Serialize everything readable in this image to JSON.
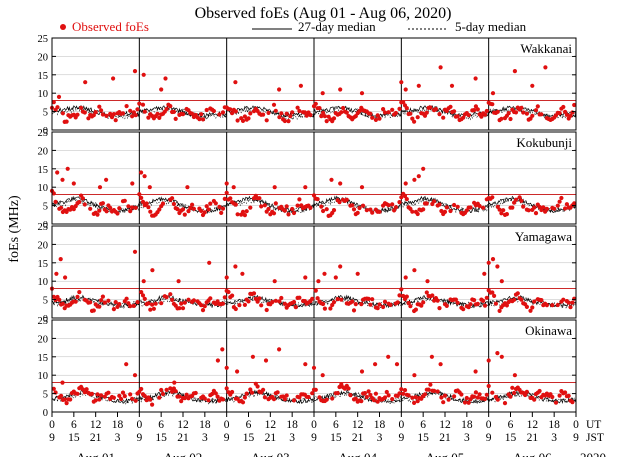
{
  "chart_data": {
    "type": "scatter",
    "title": "Observed foEs (Aug 01 - Aug 06, 2020)",
    "ylabel": "foEs (MHz)",
    "ylim": [
      0,
      25
    ],
    "yticks": [
      0,
      5,
      10,
      15,
      20,
      25
    ],
    "legend": {
      "observed": "Observed foEs",
      "median27": "27-day median",
      "median5": "5-day median"
    },
    "colors": {
      "observed": "#e01010",
      "median27": "#000000",
      "median5": "#000000",
      "reference": "#cc2a2a",
      "grid": "#bbbbbb"
    },
    "reference_line_mhz": 8,
    "time": {
      "days": [
        "Aug 01",
        "Aug 02",
        "Aug 03",
        "Aug 04",
        "Aug 05",
        "Aug 06"
      ],
      "ut_ticks": [
        "0",
        "6",
        "12",
        "18",
        "0",
        "6",
        "12",
        "18",
        "0",
        "6",
        "12",
        "18",
        "0",
        "6",
        "12",
        "18",
        "0",
        "6",
        "12",
        "18",
        "0",
        "6",
        "12",
        "18",
        "0"
      ],
      "jst_ticks": [
        "9",
        "15",
        "21",
        "3",
        "9",
        "15",
        "21",
        "3",
        "9",
        "15",
        "21",
        "3",
        "9",
        "15",
        "21",
        "3",
        "9",
        "15",
        "21",
        "3",
        "9",
        "15",
        "21",
        "3",
        "9"
      ],
      "ut_label": "UT",
      "jst_label": "JST",
      "year": "2020"
    },
    "stations": [
      {
        "name": "Wakkanai",
        "median27_profile": [
          5,
          5.5,
          6,
          6,
          5,
          4,
          4,
          4.5,
          4
        ],
        "median5_profile": [
          5,
          5,
          5.5,
          5.5,
          5,
          4,
          3.5,
          4,
          4
        ],
        "observed_profile": [
          7,
          6,
          4.5,
          3.5,
          3,
          3.5,
          4,
          5,
          6,
          5.5,
          4,
          3.5,
          4.5,
          6,
          5,
          4,
          3.5,
          3.5,
          4,
          5,
          6,
          5,
          4,
          4.5
        ],
        "spikes": [
          [
            0.08,
            9
          ],
          [
            0.38,
            13
          ],
          [
            0.7,
            14
          ],
          [
            0.95,
            16
          ],
          [
            1.05,
            15
          ],
          [
            1.25,
            11
          ],
          [
            1.3,
            14
          ],
          [
            2.1,
            13
          ],
          [
            2.6,
            11
          ],
          [
            2.85,
            12
          ],
          [
            3.1,
            10
          ],
          [
            3.3,
            11
          ],
          [
            3.55,
            10
          ],
          [
            4.0,
            13
          ],
          [
            4.05,
            11
          ],
          [
            4.2,
            12
          ],
          [
            4.45,
            17
          ],
          [
            4.58,
            12
          ],
          [
            4.85,
            14
          ],
          [
            5.05,
            10
          ],
          [
            5.3,
            16
          ],
          [
            5.5,
            12
          ],
          [
            5.65,
            17
          ]
        ]
      },
      {
        "name": "Kokubunji",
        "median27_profile": [
          5.5,
          6,
          7,
          6.5,
          5,
          4,
          3.5,
          4,
          5
        ],
        "median5_profile": [
          5,
          5.5,
          6.5,
          6,
          5,
          4,
          3.5,
          4,
          4.5
        ],
        "observed_profile": [
          8,
          7,
          5,
          3.5,
          3,
          3.5,
          5,
          6,
          7,
          6,
          5,
          3.5,
          3,
          4,
          5,
          4.5,
          4,
          3.5,
          3.5,
          4.5,
          6,
          5,
          4,
          4
        ],
        "spikes": [
          [
            0.06,
            14
          ],
          [
            0.12,
            12
          ],
          [
            0.18,
            15
          ],
          [
            0.25,
            11
          ],
          [
            0.55,
            10
          ],
          [
            0.62,
            12
          ],
          [
            0.92,
            11
          ],
          [
            1.02,
            14
          ],
          [
            1.06,
            13
          ],
          [
            1.12,
            10
          ],
          [
            1.55,
            10
          ],
          [
            2.0,
            11
          ],
          [
            2.08,
            10
          ],
          [
            2.55,
            10
          ],
          [
            2.9,
            10
          ],
          [
            3.2,
            12
          ],
          [
            3.3,
            11
          ],
          [
            3.55,
            10
          ],
          [
            4.05,
            11
          ],
          [
            4.15,
            12
          ],
          [
            4.2,
            13
          ],
          [
            4.25,
            15
          ]
        ]
      },
      {
        "name": "Yamagawa",
        "median27_profile": [
          4,
          4.5,
          5.5,
          5.5,
          4.5,
          4,
          3.5,
          3.5,
          4
        ],
        "median5_profile": [
          4,
          4,
          5,
          5,
          4.5,
          4,
          3.5,
          3.5,
          4
        ],
        "observed_profile": [
          7,
          6,
          4,
          3,
          3,
          3.5,
          5,
          6,
          6,
          5,
          4,
          3,
          3,
          4,
          5,
          4.5,
          4,
          3.5,
          3,
          4,
          5,
          4.5,
          4,
          3.5
        ],
        "spikes": [
          [
            0.05,
            12
          ],
          [
            0.1,
            16
          ],
          [
            0.15,
            11
          ],
          [
            0.95,
            18
          ],
          [
            1.05,
            10
          ],
          [
            1.15,
            13
          ],
          [
            1.45,
            10
          ],
          [
            1.8,
            15
          ],
          [
            2.0,
            11
          ],
          [
            2.1,
            14
          ],
          [
            2.18,
            12
          ],
          [
            2.55,
            10
          ],
          [
            2.9,
            11
          ],
          [
            3.05,
            10
          ],
          [
            3.12,
            12
          ],
          [
            3.25,
            11
          ],
          [
            3.3,
            14
          ],
          [
            3.5,
            12
          ],
          [
            4.05,
            11
          ],
          [
            4.15,
            13
          ],
          [
            4.3,
            10
          ],
          [
            4.95,
            12
          ],
          [
            5.0,
            15
          ],
          [
            5.05,
            16
          ],
          [
            5.1,
            14
          ],
          [
            5.15,
            10
          ]
        ]
      },
      {
        "name": "Okinawa",
        "median27_profile": [
          3.5,
          4,
          5,
          5.5,
          4.5,
          3.5,
          3,
          3,
          3.5
        ],
        "median5_profile": [
          3.5,
          3.5,
          4.5,
          5,
          4.5,
          3.5,
          3,
          3,
          3.5
        ],
        "observed_profile": [
          6,
          5,
          4,
          3,
          3,
          3.5,
          5,
          6,
          7,
          6,
          5,
          4,
          3.5,
          4,
          5,
          5,
          4.5,
          4,
          3,
          4,
          5,
          5,
          4,
          3.5
        ],
        "spikes": [
          [
            0.12,
            8
          ],
          [
            0.85,
            13
          ],
          [
            0.95,
            10
          ],
          [
            1.4,
            8
          ],
          [
            1.9,
            14
          ],
          [
            1.95,
            17
          ],
          [
            2.0,
            12
          ],
          [
            2.12,
            11
          ],
          [
            2.3,
            15
          ],
          [
            2.45,
            14
          ],
          [
            2.6,
            17
          ],
          [
            2.9,
            13
          ],
          [
            3.0,
            12
          ],
          [
            3.1,
            10
          ],
          [
            3.55,
            11
          ],
          [
            3.7,
            13
          ],
          [
            3.85,
            15
          ],
          [
            3.95,
            13
          ],
          [
            4.15,
            10
          ],
          [
            4.35,
            15
          ],
          [
            4.45,
            13
          ],
          [
            4.85,
            11
          ],
          [
            5.0,
            14
          ],
          [
            5.1,
            16
          ],
          [
            5.15,
            15
          ],
          [
            5.3,
            10
          ]
        ]
      }
    ]
  }
}
